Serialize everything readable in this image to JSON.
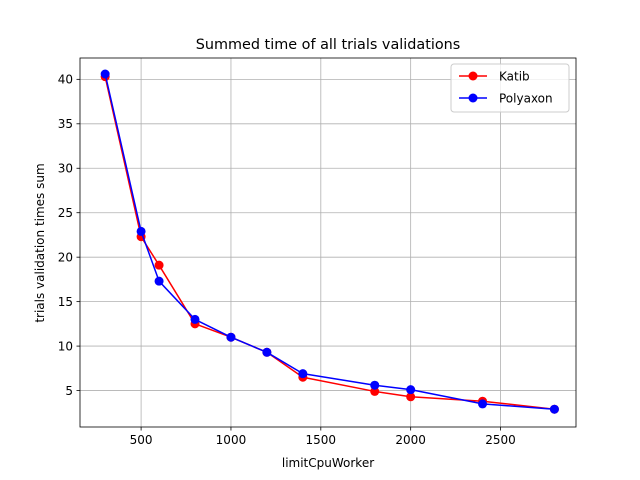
{
  "chart_data": {
    "type": "line",
    "title": "Summed time of all trials validations",
    "xlabel": "limitCpuWorker",
    "ylabel": "trials validation times sum",
    "xlim": [
      160,
      2920
    ],
    "ylim": [
      0.9,
      42.4
    ],
    "xticks": [
      500,
      1000,
      1500,
      2000,
      2500
    ],
    "yticks": [
      5,
      10,
      15,
      20,
      25,
      30,
      35,
      40
    ],
    "grid": true,
    "legend_position": "top-right",
    "series": [
      {
        "name": "Katib",
        "color": "#ff0000",
        "x": [
          300,
          500,
          600,
          800,
          1000,
          1200,
          1400,
          1800,
          2000,
          2400,
          2800
        ],
        "y": [
          40.3,
          22.3,
          19.1,
          12.5,
          11.0,
          9.3,
          6.5,
          4.9,
          4.3,
          3.8,
          2.9
        ]
      },
      {
        "name": "Polyaxon",
        "color": "#0000ff",
        "x": [
          300,
          500,
          600,
          800,
          1000,
          1200,
          1400,
          1800,
          2000,
          2400,
          2800
        ],
        "y": [
          40.6,
          22.9,
          17.3,
          13.0,
          11.0,
          9.3,
          6.9,
          5.6,
          5.1,
          3.5,
          2.9
        ]
      }
    ]
  }
}
